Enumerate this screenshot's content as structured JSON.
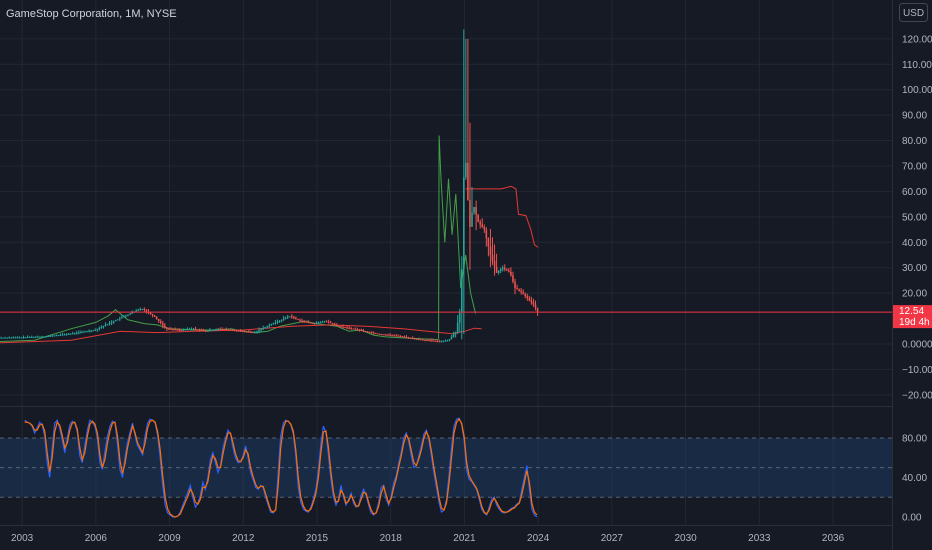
{
  "header": {
    "title": "GameStop Corporation, 1M, NYSE",
    "currency": "USD"
  },
  "price_badge": {
    "price": "12.54",
    "countdown": "19d 4h",
    "value": 12.54,
    "color": "#f23645"
  },
  "colors": {
    "background": "#161a25",
    "up": "#26a69a",
    "down": "#ef5350",
    "green_line": "#43a047",
    "red_line": "#e53935",
    "stoch_k": "#2962ff",
    "stoch_d": "#ff6d00",
    "stoch_band": "#1e3a5f"
  },
  "chart_data": [
    {
      "type": "candlestick",
      "panel": "price",
      "x_axis": {
        "ticks": [
          "2003",
          "2006",
          "2009",
          "2012",
          "2015",
          "2018",
          "2021",
          "2024",
          "2027",
          "2030",
          "2033",
          "2036"
        ],
        "range": [
          2002.1,
          2038.4
        ]
      },
      "y_axis": {
        "ticks": [
          "120.00",
          "110.00",
          "100.00",
          "90.00",
          "80.00",
          "70.00",
          "60.00",
          "50.00",
          "40.00",
          "30.00",
          "20.00",
          "0.0000",
          "−10.00",
          "−20.00"
        ],
        "range": [
          -22,
          122
        ]
      },
      "price_series": {
        "name": "",
        "points": [
          [
            2002.1,
            2.5
          ],
          [
            2003,
            2.6
          ],
          [
            2004,
            3
          ],
          [
            2005,
            4
          ],
          [
            2006,
            5.5
          ],
          [
            2007,
            10
          ],
          [
            2007.9,
            14
          ],
          [
            2008.4,
            11
          ],
          [
            2008.9,
            6
          ],
          [
            2009.5,
            5.5
          ],
          [
            2010,
            6
          ],
          [
            2010.5,
            5
          ],
          [
            2011,
            6
          ],
          [
            2011.5,
            5.5
          ],
          [
            2012,
            5
          ],
          [
            2012.5,
            4.5
          ],
          [
            2013,
            7
          ],
          [
            2013.5,
            9
          ],
          [
            2013.9,
            11
          ],
          [
            2014.4,
            9
          ],
          [
            2014.9,
            8
          ],
          [
            2015.4,
            9
          ],
          [
            2015.9,
            7
          ],
          [
            2016.5,
            6
          ],
          [
            2017,
            5
          ],
          [
            2017.5,
            4
          ],
          [
            2018,
            3.5
          ],
          [
            2018.5,
            3
          ],
          [
            2019,
            2
          ],
          [
            2019.5,
            1.5
          ],
          [
            2020,
            1
          ],
          [
            2020.4,
            1.5
          ],
          [
            2020.7,
            5
          ],
          [
            2020.9,
            15
          ],
          [
            2021.05,
            80
          ],
          [
            2021.25,
            45
          ],
          [
            2021.4,
            55
          ],
          [
            2021.6,
            48
          ],
          [
            2021.85,
            45
          ],
          [
            2022.1,
            35
          ],
          [
            2022.35,
            28
          ],
          [
            2022.6,
            30
          ],
          [
            2022.9,
            28
          ],
          [
            2023.1,
            22
          ],
          [
            2023.4,
            20
          ],
          [
            2023.7,
            17
          ],
          [
            2023.9,
            15
          ],
          [
            2024.0,
            12.54
          ]
        ]
      },
      "overlay_lines": [
        {
          "name": "",
          "color": "#43a047",
          "segments": [
            [
              [
                2002.1,
                1
              ],
              [
                2003.5,
                1.5
              ],
              [
                2005,
                6
              ],
              [
                2006,
                8.5
              ],
              [
                2006.5,
                11
              ],
              [
                2006.8,
                13.5
              ],
              [
                2007.3,
                9.5
              ],
              [
                2008,
                8
              ],
              [
                2008.5,
                7.5
              ],
              [
                2009,
                6
              ],
              [
                2010,
                5.5
              ],
              [
                2011,
                5.5
              ],
              [
                2011.5,
                6
              ],
              [
                2012,
                5
              ],
              [
                2012.5,
                4.5
              ],
              [
                2013,
                5
              ],
              [
                2013.5,
                7
              ],
              [
                2014,
                8
              ],
              [
                2014.5,
                9
              ],
              [
                2015,
                8
              ],
              [
                2015.8,
                7
              ],
              [
                2016.3,
                5
              ],
              [
                2016.8,
                5.5
              ],
              [
                2017.3,
                3.5
              ],
              [
                2017.8,
                2.8
              ],
              [
                2018.3,
                2.5
              ],
              [
                2018.8,
                2.3
              ],
              [
                2019.3,
                2
              ],
              [
                2019.8,
                1.8
              ],
              [
                2019.95,
                1.7
              ]
            ],
            [
              [
                2019.95,
                2
              ],
              [
                2019.97,
                82
              ],
              [
                2020.05,
                64
              ],
              [
                2020.2,
                40
              ],
              [
                2020.35,
                65
              ],
              [
                2020.5,
                43
              ],
              [
                2020.65,
                59
              ],
              [
                2020.85,
                22
              ],
              [
                2021.05,
                35
              ],
              [
                2021.25,
                20
              ],
              [
                2021.45,
                12
              ]
            ]
          ]
        },
        {
          "name": "",
          "color": "#e53935",
          "segments": [
            [
              [
                2002.1,
                0.5
              ],
              [
                2005,
                1.5
              ],
              [
                2007,
                5
              ],
              [
                2008.5,
                4.5
              ],
              [
                2010,
                5
              ],
              [
                2012,
                5.5
              ],
              [
                2014,
                7
              ],
              [
                2015.5,
                7.5
              ],
              [
                2017,
                7
              ],
              [
                2018.5,
                6
              ],
              [
                2019.5,
                5
              ],
              [
                2020.5,
                4
              ],
              [
                2021,
                5
              ],
              [
                2021.4,
                6.2
              ],
              [
                2021.7,
                6
              ]
            ],
            [
              [
                2021.05,
                61
              ],
              [
                2021.5,
                61
              ],
              [
                2022,
                61
              ],
              [
                2022.5,
                61
              ],
              [
                2022.9,
                62
              ],
              [
                2023.1,
                61
              ],
              [
                2023.2,
                51
              ],
              [
                2023.5,
                50.5
              ],
              [
                2023.7,
                45
              ],
              [
                2023.85,
                39
              ],
              [
                2024.0,
                38
              ]
            ]
          ]
        }
      ],
      "current_price": 12.54
    },
    {
      "type": "line",
      "panel": "stochastic",
      "y_axis": {
        "ticks": [
          "80.00",
          "40.00",
          "0.00"
        ],
        "range": [
          -6,
          108
        ]
      },
      "levels": [
        80,
        50,
        20
      ],
      "series": [
        {
          "name": "",
          "color": "#2962ff",
          "values": [
            98,
            96,
            95,
            92,
            85,
            90,
            96,
            93,
            82,
            55,
            40,
            70,
            95,
            98,
            90,
            78,
            65,
            80,
            93,
            97,
            95,
            86,
            62,
            55,
            72,
            88,
            98,
            96,
            92,
            80,
            55,
            48,
            66,
            82,
            92,
            97,
            95,
            74,
            48,
            40,
            60,
            75,
            86,
            95,
            82,
            72,
            68,
            63,
            82,
            95,
            99,
            98,
            95,
            82,
            60,
            32,
            12,
            4,
            2,
            0,
            0,
            1,
            5,
            12,
            18,
            25,
            32,
            20,
            10,
            14,
            22,
            35,
            28,
            40,
            58,
            65,
            55,
            45,
            52,
            70,
            80,
            88,
            84,
            70,
            60,
            55,
            56,
            62,
            72,
            60,
            45,
            38,
            30,
            28,
            32,
            30,
            20,
            12,
            5,
            4,
            8,
            45,
            82,
            95,
            98,
            97,
            93,
            84,
            62,
            30,
            15,
            8,
            6,
            5,
            10,
            18,
            28,
            48,
            74,
            92,
            85,
            62,
            38,
            20,
            12,
            18,
            32,
            20,
            12,
            18,
            24,
            14,
            10,
            12,
            22,
            28,
            22,
            12,
            4,
            2,
            5,
            15,
            30,
            32,
            18,
            12,
            22,
            35,
            42,
            55,
            66,
            80,
            85,
            76,
            62,
            50,
            52,
            62,
            72,
            84,
            88,
            78,
            62,
            45,
            30,
            15,
            5,
            7,
            18,
            42,
            70,
            92,
            99,
            100,
            94,
            78,
            48,
            38,
            36,
            32,
            28,
            18,
            8,
            4,
            2,
            10,
            18,
            20,
            12,
            8,
            5,
            4,
            5,
            7,
            9,
            10,
            13,
            15,
            28,
            40,
            52,
            28,
            8,
            2,
            0
          ]
        },
        {
          "name": "",
          "color": "#ff6d00",
          "values": [
            96,
            96,
            95,
            93,
            88,
            88,
            93,
            94,
            87,
            65,
            46,
            60,
            86,
            96,
            93,
            83,
            70,
            75,
            88,
            95,
            96,
            89,
            70,
            58,
            65,
            82,
            94,
            97,
            94,
            85,
            63,
            50,
            58,
            75,
            87,
            95,
            96,
            82,
            57,
            44,
            54,
            70,
            82,
            92,
            85,
            75,
            70,
            65,
            75,
            90,
            97,
            98,
            96,
            86,
            68,
            42,
            20,
            8,
            3,
            1,
            0,
            1,
            3,
            9,
            15,
            21,
            28,
            24,
            15,
            13,
            18,
            30,
            30,
            36,
            52,
            62,
            59,
            50,
            50,
            64,
            76,
            85,
            85,
            75,
            64,
            57,
            56,
            60,
            68,
            64,
            50,
            41,
            33,
            29,
            31,
            31,
            23,
            15,
            7,
            5,
            7,
            32,
            70,
            90,
            97,
            97,
            94,
            87,
            68,
            40,
            20,
            11,
            7,
            6,
            8,
            15,
            24,
            40,
            65,
            86,
            87,
            70,
            45,
            25,
            15,
            16,
            27,
            23,
            14,
            16,
            22,
            17,
            11,
            11,
            18,
            25,
            24,
            15,
            7,
            3,
            4,
            11,
            24,
            31,
            22,
            14,
            19,
            30,
            39,
            51,
            62,
            75,
            83,
            79,
            67,
            55,
            52,
            59,
            68,
            80,
            86,
            81,
            67,
            50,
            35,
            20,
            9,
            7,
            14,
            34,
            60,
            85,
            96,
            99,
            95,
            82,
            56,
            42,
            37,
            33,
            29,
            21,
            11,
            5,
            3,
            7,
            15,
            19,
            15,
            10,
            6,
            5,
            5,
            6,
            8,
            9,
            12,
            14,
            23,
            35,
            47,
            35,
            14,
            5,
            2
          ]
        }
      ]
    }
  ]
}
